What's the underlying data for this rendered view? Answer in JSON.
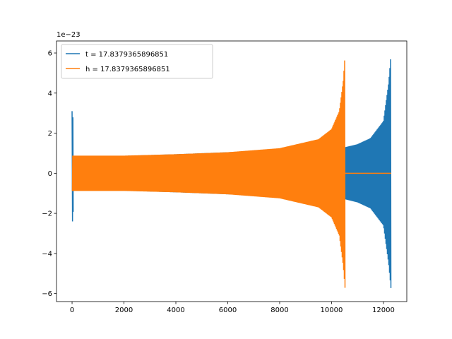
{
  "chart_data": {
    "type": "line",
    "title": "",
    "xlabel": "",
    "ylabel": "",
    "y_offset_label": "1e−23",
    "xlim": [
      -600,
      12900
    ],
    "ylim": [
      -6.4,
      6.6
    ],
    "x_ticks": [
      0,
      2000,
      4000,
      6000,
      8000,
      10000,
      12000
    ],
    "x_tick_labels": [
      "0",
      "2000",
      "4000",
      "6000",
      "8000",
      "10000",
      "12000"
    ],
    "y_ticks": [
      -6,
      -4,
      -2,
      0,
      2,
      4,
      6
    ],
    "y_tick_labels": [
      "−6",
      "−4",
      "−2",
      "0",
      "2",
      "4",
      "6"
    ],
    "grid": false,
    "legend_position": "top-left",
    "series": [
      {
        "name": "t = 17.8379365896851",
        "color": "#1f77b4",
        "x_start": 0,
        "x_end": 12300,
        "envelope_x": [
          0,
          2000,
          4000,
          6000,
          8000,
          10000,
          10530,
          11000,
          11500,
          12000,
          12200,
          12300
        ],
        "envelope_y": [
          0.85,
          0.87,
          0.95,
          1.05,
          1.15,
          1.3,
          1.3,
          1.45,
          1.75,
          2.6,
          4.5,
          6.1
        ],
        "envelope_y_min": [
          -0.85,
          -0.87,
          -0.95,
          -1.05,
          -1.15,
          -1.3,
          -1.3,
          -1.45,
          -1.75,
          -2.6,
          -4.5,
          -5.9
        ],
        "initial_spike": {
          "x": 0,
          "max": 3.1,
          "min": -2.4
        }
      },
      {
        "name": "h = 17.8379365896851",
        "color": "#ff7f0e",
        "x_start": 0,
        "x_end": 10530,
        "envelope_x": [
          0,
          2000,
          4000,
          6000,
          8000,
          9500,
          10000,
          10300,
          10450,
          10530
        ],
        "envelope_y": [
          0.88,
          0.88,
          0.95,
          1.05,
          1.25,
          1.7,
          2.2,
          3.1,
          4.6,
          6.1
        ],
        "envelope_y_min": [
          -0.88,
          -0.88,
          -0.95,
          -1.05,
          -1.25,
          -1.7,
          -2.2,
          -3.1,
          -4.6,
          -5.9
        ],
        "flat_after": {
          "x_from": 10530,
          "x_to": 12300,
          "y": 0
        }
      }
    ]
  }
}
